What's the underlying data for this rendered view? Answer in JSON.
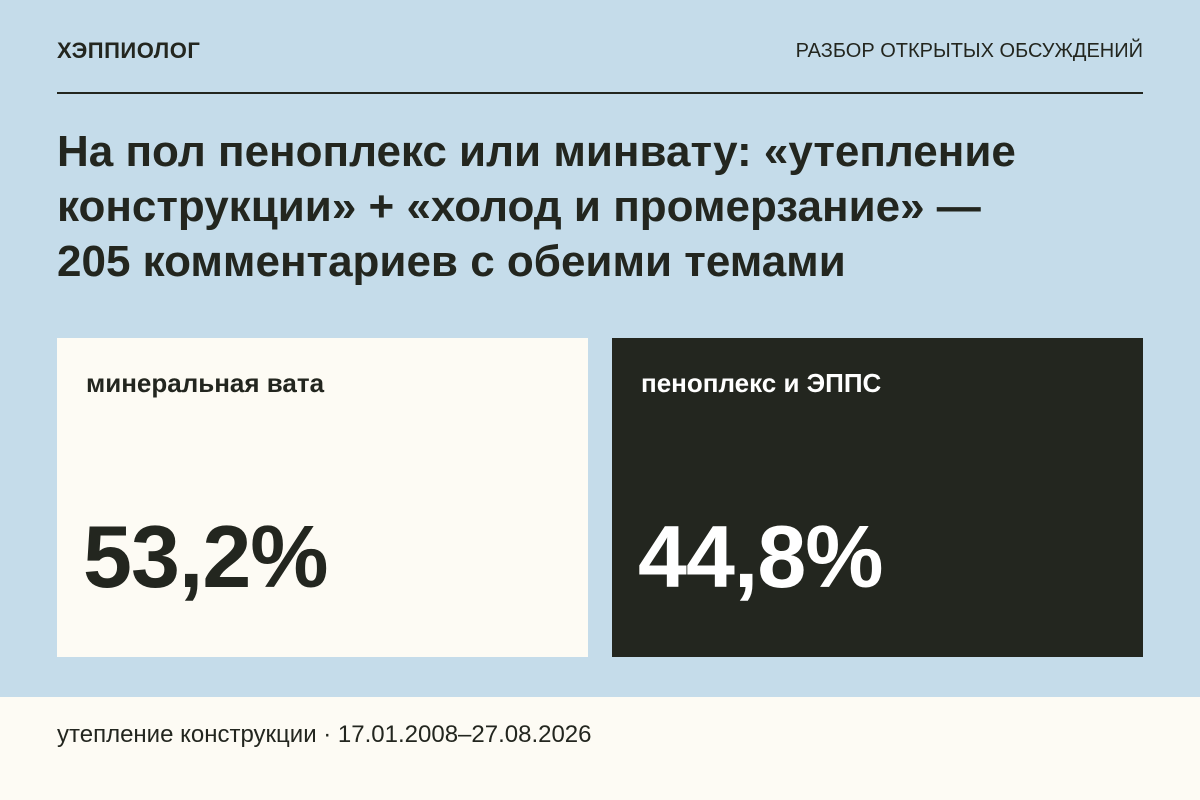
{
  "header": {
    "brand": "ХЭППИОЛОГ",
    "section": "РАЗБОР ОТКРЫТЫХ ОБСУЖДЕНИЙ"
  },
  "title": [
    "На пол пеноплекс или минвату: «утепление",
    "конструкции» + «холод и промерзание» —",
    "205 комментариев с обеими темами"
  ],
  "cards": [
    {
      "label": "минеральная вата",
      "value": "53,2%"
    },
    {
      "label": "пеноплекс и ЭППС",
      "value": "44,8%"
    }
  ],
  "footer": "утепление конструкции · 17.01.2008–27.08.2026"
}
